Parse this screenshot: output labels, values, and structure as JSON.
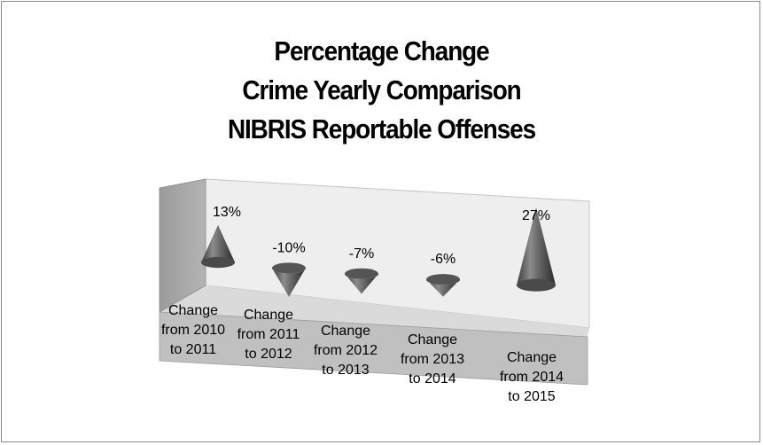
{
  "chart_data": {
    "type": "bar",
    "style": "3d-cone",
    "title": [
      "Percentage Change",
      "Crime Yearly Comparison",
      "NIBRIS Reportable Offenses"
    ],
    "categories": [
      [
        "Change",
        "from 2010",
        "to 2011"
      ],
      [
        "Change",
        "from 2011",
        "to 2012"
      ],
      [
        "Change",
        "from 2012",
        "to 2013"
      ],
      [
        "Change",
        "from 2013",
        "to 2014"
      ],
      [
        "Change",
        "from 2014",
        "to 2015"
      ]
    ],
    "values": [
      13,
      -10,
      -7,
      -6,
      27
    ],
    "data_labels": [
      "13%",
      "-10%",
      "-7%",
      "-6%",
      "27%"
    ],
    "unit": "%",
    "colors": {
      "wall_side": "#a6a6a6",
      "wall_back": "#eeeeee",
      "floor_front": "#c0c0c0",
      "cone_dark": "#3a3a3a",
      "cone_light": "#9a9a9a"
    }
  }
}
